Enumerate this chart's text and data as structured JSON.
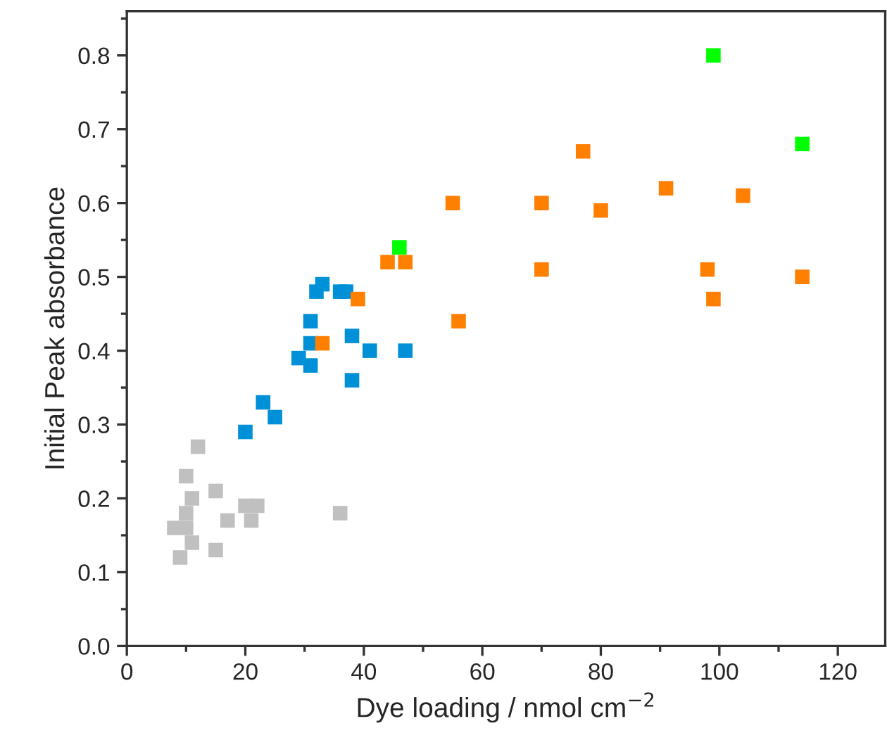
{
  "chart_data": {
    "type": "scatter",
    "xlabel": "Dye loading / nmol cm$^{−2}$",
    "ylabel": "Initial Peak absorbance",
    "marker": "square",
    "grid": false,
    "legend": false,
    "xlim": [
      0,
      128
    ],
    "ylim": [
      0,
      0.86
    ],
    "xticks": [
      0,
      20,
      40,
      60,
      80,
      100,
      120
    ],
    "yticks": [
      {
        "value": 0,
        "label": "0.0"
      },
      0.1,
      0.2,
      0.3,
      0.4,
      0.5,
      0.6,
      0.7,
      0.8
    ],
    "series": [
      {
        "color": "#c0c0c0",
        "x": [
          8,
          9,
          10,
          10,
          10,
          11,
          11,
          12,
          15,
          15,
          17,
          20,
          21,
          22,
          36
        ],
        "values": [
          0.16,
          0.12,
          0.16,
          0.18,
          0.23,
          0.14,
          0.2,
          0.27,
          0.13,
          0.21,
          0.17,
          0.19,
          0.17,
          0.19,
          0.18
        ]
      },
      {
        "color": "#0090d8",
        "x": [
          20,
          23,
          25,
          29,
          31,
          31,
          31,
          32,
          33,
          36,
          37,
          38,
          38,
          41,
          47
        ],
        "values": [
          0.29,
          0.33,
          0.31,
          0.39,
          0.38,
          0.41,
          0.44,
          0.48,
          0.49,
          0.48,
          0.48,
          0.36,
          0.42,
          0.4,
          0.4
        ]
      },
      {
        "color": "#ff7f00",
        "x": [
          33,
          39,
          44,
          47,
          55,
          56,
          70,
          70,
          77,
          80,
          91,
          98,
          99,
          104,
          114
        ],
        "values": [
          0.41,
          0.47,
          0.52,
          0.52,
          0.6,
          0.44,
          0.6,
          0.51,
          0.67,
          0.59,
          0.62,
          0.51,
          0.47,
          0.61,
          0.5
        ]
      },
      {
        "color": "#00ff00",
        "x": [
          46,
          99,
          114
        ],
        "values": [
          0.54,
          0.8,
          0.68
        ]
      }
    ]
  }
}
